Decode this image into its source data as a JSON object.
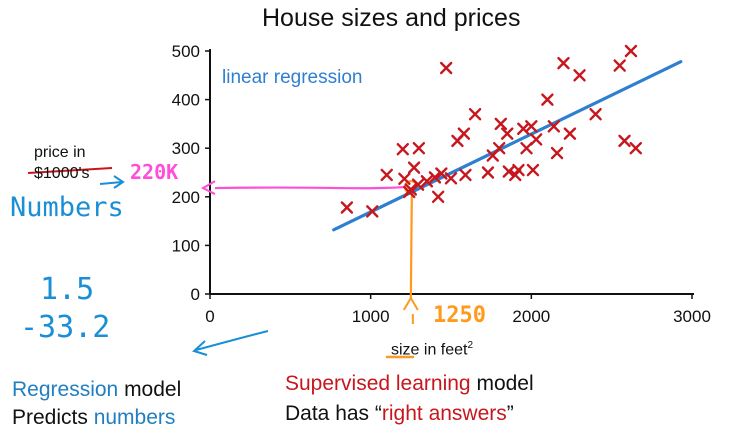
{
  "chart_data": {
    "type": "scatter",
    "title": "House sizes and prices",
    "xlabel": "size in feet",
    "xlabel_superscript": "2",
    "ylabel_line1": "price in",
    "ylabel_line2": "$1000's",
    "xlim": [
      0,
      3000
    ],
    "ylim": [
      0,
      500
    ],
    "x_ticks": [
      "0",
      "1000",
      "2000",
      "3000"
    ],
    "y_ticks": [
      "0",
      "100",
      "200",
      "300",
      "400",
      "500"
    ],
    "grid": false,
    "marker_color": "#c8161d",
    "line_color": "#2e7fd0",
    "series": [
      {
        "marker": "x",
        "points": [
          [
            852,
            178
          ],
          [
            1010,
            170
          ],
          [
            1100,
            245
          ],
          [
            1200,
            298
          ],
          [
            1210,
            237
          ],
          [
            1240,
            210
          ],
          [
            1250,
            215
          ],
          [
            1270,
            260
          ],
          [
            1295,
            225
          ],
          [
            1300,
            300
          ],
          [
            1350,
            232
          ],
          [
            1400,
            240
          ],
          [
            1420,
            200
          ],
          [
            1440,
            248
          ],
          [
            1470,
            465
          ],
          [
            1500,
            238
          ],
          [
            1540,
            315
          ],
          [
            1580,
            330
          ],
          [
            1590,
            245
          ],
          [
            1650,
            370
          ],
          [
            1730,
            250
          ],
          [
            1760,
            285
          ],
          [
            1800,
            300
          ],
          [
            1810,
            350
          ],
          [
            1850,
            330
          ],
          [
            1860,
            252
          ],
          [
            1900,
            245
          ],
          [
            1920,
            255
          ],
          [
            1950,
            340
          ],
          [
            1970,
            300
          ],
          [
            2000,
            345
          ],
          [
            2010,
            255
          ],
          [
            2030,
            318
          ],
          [
            2100,
            400
          ],
          [
            2140,
            345
          ],
          [
            2160,
            290
          ],
          [
            2200,
            475
          ],
          [
            2240,
            330
          ],
          [
            2300,
            450
          ],
          [
            2400,
            370
          ],
          [
            2550,
            470
          ],
          [
            2580,
            315
          ],
          [
            2620,
            500
          ],
          [
            2650,
            300
          ]
        ]
      },
      {
        "name": "linear regression",
        "type": "line",
        "points": [
          [
            770,
            132
          ],
          [
            2930,
            478
          ]
        ]
      }
    ],
    "guide_color": "#ff4fd8",
    "size_guide_color": "#ff9a1f",
    "guide_point": [
      1250,
      220
    ]
  },
  "annotations": {
    "predicted_price": "220K",
    "numbers": "Numbers",
    "value_a": "1.5",
    "value_b": "-33.2",
    "input_size": "1250"
  },
  "footer": {
    "regression_word": "Regression",
    "regression_rest": " model",
    "predicts_word": "Predicts ",
    "numbers_word": "numbers",
    "supervised_word": "Supervised learning",
    "supervised_rest": " model",
    "data_has": "Data has “",
    "right_answers": "right answers",
    "close_quote": "”"
  },
  "colors": {
    "hand_blue": "#1a8fd6",
    "accent_red": "#c8161d"
  }
}
